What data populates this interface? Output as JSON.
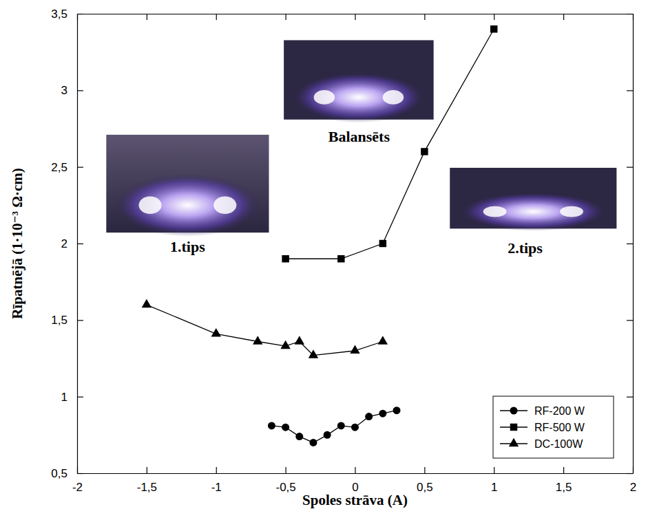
{
  "chart_data": {
    "type": "line",
    "x_label": "Spoles strāva (A)",
    "y_label": "Rīpatnējā (1·10⁻³ Ω·cm)",
    "xlim": [
      -2,
      2
    ],
    "ylim": [
      0.5,
      3.5
    ],
    "xticks": [
      -2,
      {
        "value": -1.5,
        "label": "-1,5"
      },
      -1,
      {
        "value": -0.5,
        "label": "-0,5"
      },
      0,
      {
        "value": 0.5,
        "label": "0,5"
      },
      1,
      {
        "value": 1.5,
        "label": "1,5"
      },
      2
    ],
    "yticks": [
      {
        "value": 0.5,
        "label": "0,5"
      },
      1,
      {
        "value": 1.5,
        "label": "1,5"
      },
      2,
      {
        "value": 2.5,
        "label": "2,5"
      },
      3,
      {
        "value": 3.5,
        "label": "3,5"
      }
    ],
    "grid": false,
    "legend": "lower right",
    "annotations": [
      {
        "text": "1.tips"
      },
      {
        "text": "Balansēts"
      },
      {
        "text": "2.tips"
      }
    ],
    "series": [
      {
        "name": "RF-200 W",
        "color": "#000000",
        "marker": "circle",
        "line_style": "solid",
        "x": [
          -0.6,
          -0.5,
          -0.4,
          -0.3,
          -0.2,
          -0.1,
          0,
          0.1,
          0.2,
          0.3
        ],
        "values": [
          0.81,
          0.8,
          0.74,
          0.7,
          0.75,
          0.81,
          0.8,
          0.87,
          0.89,
          0.91
        ]
      },
      {
        "name": "RF-500 W",
        "color": "#000000",
        "marker": "square",
        "line_style": "solid",
        "x": [
          -0.5,
          -0.1,
          0.2,
          0.5,
          1.0
        ],
        "values": [
          1.9,
          1.9,
          2.0,
          2.6,
          3.4
        ]
      },
      {
        "name": "DC-100W",
        "color": "#000000",
        "marker": "triangle",
        "line_style": "solid",
        "x": [
          -1.5,
          -1.0,
          -0.7,
          -0.5,
          -0.4,
          -0.3,
          0,
          0.2
        ],
        "values": [
          1.6,
          1.41,
          1.36,
          1.33,
          1.36,
          1.27,
          1.3,
          1.36
        ]
      }
    ]
  }
}
